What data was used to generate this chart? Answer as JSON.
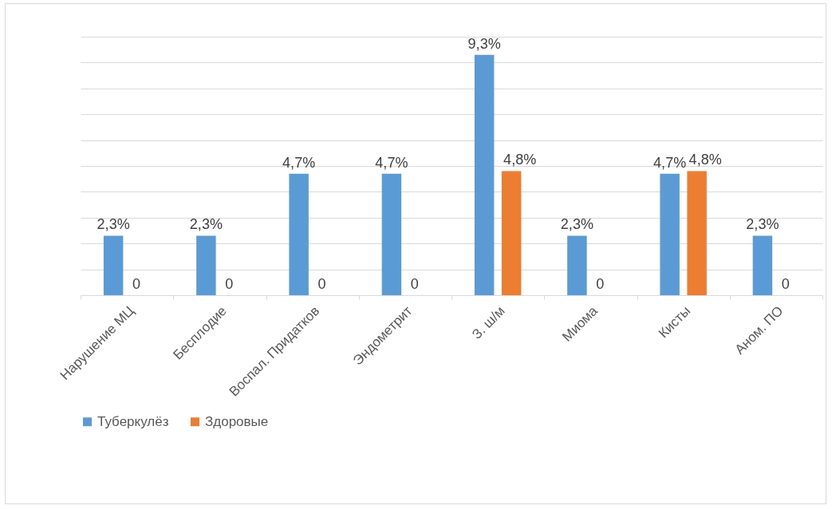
{
  "chart_data": {
    "type": "bar",
    "categories": [
      "Нарушение МЦ",
      "Бесплодие",
      "Воспал. Придатков",
      "Эндометрит",
      "З. ш/м",
      "Миома",
      "Кисты",
      "Аном. ПО"
    ],
    "series": [
      {
        "name": "Туберкулёз",
        "color": "#5b9bd5",
        "values": [
          2.3,
          2.3,
          4.7,
          4.7,
          9.3,
          2.3,
          4.7,
          2.3
        ],
        "value_labels": [
          "2,3%",
          "2,3%",
          "4,7%",
          "4,7%",
          "9,3%",
          "2,3%",
          "4,7%",
          "2,3%"
        ]
      },
      {
        "name": "Здоровые",
        "color": "#ed7d31",
        "values": [
          0,
          0,
          0,
          0,
          4.8,
          0,
          4.8,
          0
        ],
        "value_labels": [
          "0",
          "0",
          "0",
          "0",
          "4,8%",
          "0",
          "4,8%",
          "0"
        ]
      }
    ],
    "grid": "y",
    "legend": "bottom"
  }
}
